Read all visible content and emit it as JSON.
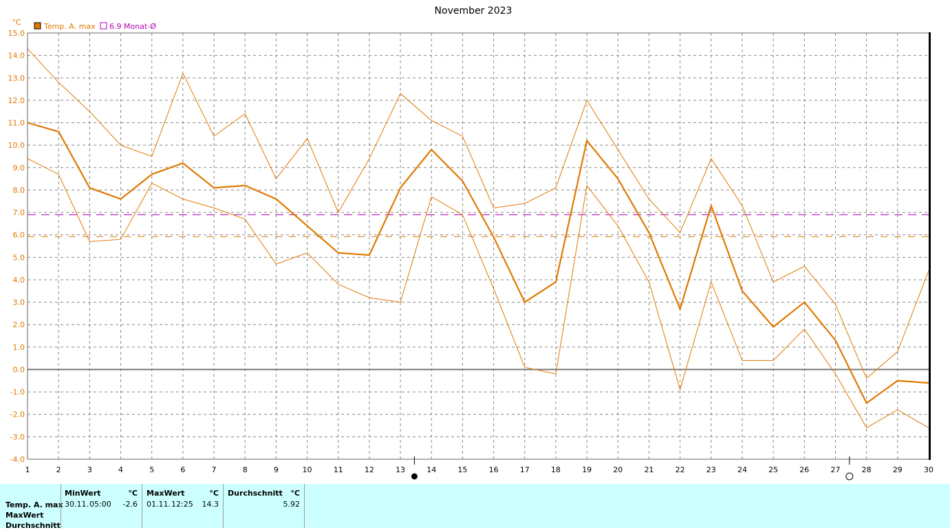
{
  "chart_data": {
    "type": "line",
    "title": "November 2023",
    "ylabel": "°C",
    "x": [
      1,
      2,
      3,
      4,
      5,
      6,
      7,
      8,
      9,
      10,
      11,
      12,
      13,
      14,
      15,
      16,
      17,
      18,
      19,
      20,
      21,
      22,
      23,
      24,
      25,
      26,
      27,
      28,
      29,
      30
    ],
    "ylim": [
      -4.0,
      15.0
    ],
    "yticks": [
      15.0,
      14.0,
      13.0,
      12.0,
      11.0,
      10.0,
      9.0,
      8.0,
      7.0,
      6.0,
      5.0,
      4.0,
      3.0,
      2.0,
      1.0,
      0.0,
      -1.0,
      -2.0,
      -3.0,
      -4.0
    ],
    "ytick_labels": [
      "15.0",
      "14.0",
      "13.0",
      "12.0",
      "11.0",
      "10.0",
      "9.0",
      "8.0",
      "7.0",
      "6.0",
      "5.0",
      "4.0",
      "3.0",
      "2.0",
      "1.0",
      "0.0",
      "-1.0",
      "-2.0",
      "-3.0",
      "-4.0"
    ],
    "grid": true,
    "legend": "top-left",
    "series": [
      {
        "name": "Temp. A. max",
        "color": "#e07800",
        "role": "main",
        "values": [
          11.0,
          10.6,
          8.1,
          7.6,
          8.7,
          9.2,
          8.1,
          8.2,
          7.6,
          6.4,
          5.2,
          5.1,
          8.1,
          9.8,
          8.4,
          5.9,
          3.0,
          3.9,
          10.2,
          8.5,
          6.1,
          2.7,
          7.3,
          3.5,
          1.9,
          3.0,
          1.3,
          -1.5,
          -0.5,
          -0.6
        ]
      },
      {
        "color": "#e07800",
        "role": "upper",
        "values": [
          14.3,
          12.8,
          11.5,
          10.0,
          9.5,
          13.2,
          10.4,
          11.4,
          8.5,
          10.3,
          7.0,
          9.4,
          12.3,
          11.1,
          10.4,
          7.2,
          7.4,
          8.1,
          12.0,
          9.8,
          7.6,
          6.1,
          9.4,
          7.3,
          3.9,
          4.6,
          2.9,
          -0.4,
          0.8,
          4.4
        ]
      },
      {
        "color": "#e07800",
        "role": "lower",
        "values": [
          9.4,
          8.7,
          5.7,
          5.8,
          8.3,
          7.6,
          7.2,
          6.7,
          4.7,
          5.2,
          3.8,
          3.2,
          3.0,
          7.7,
          6.9,
          3.6,
          0.1,
          -0.2,
          8.2,
          6.4,
          3.9,
          -0.9,
          3.9,
          0.4,
          0.4,
          1.8,
          -0.2,
          -2.6,
          -1.8,
          -2.6
        ]
      }
    ],
    "reference_lines": [
      {
        "name": "6.9 Monat-Ø",
        "value": 6.9,
        "color": "#b000b0",
        "style": "dashed"
      },
      {
        "value": 5.92,
        "color": "#e07800",
        "style": "dashed"
      }
    ],
    "moon_markers": [
      {
        "phase": "new",
        "x": 13.45
      },
      {
        "phase": "full",
        "x": 27.45
      }
    ]
  },
  "legend": {
    "main_label": "Temp. A. max",
    "avg_label": "6.9 Monat-Ø",
    "main_color": "#e07800",
    "avg_color": "#b000b0"
  },
  "stats": {
    "row_labels": [
      "Temp. A. max",
      "MaxWert",
      "Durchschnitt"
    ],
    "min_header": "MinWert",
    "max_header": "MaxWert",
    "avg_header": "Durchschnitt",
    "unit": "°C",
    "min_date": "30.11.",
    "min_time": "05:00",
    "min_value": "-2.6",
    "max_date": "01.11.",
    "max_time": "12:25",
    "max_value": "14.3",
    "avg_value": "5.92"
  }
}
